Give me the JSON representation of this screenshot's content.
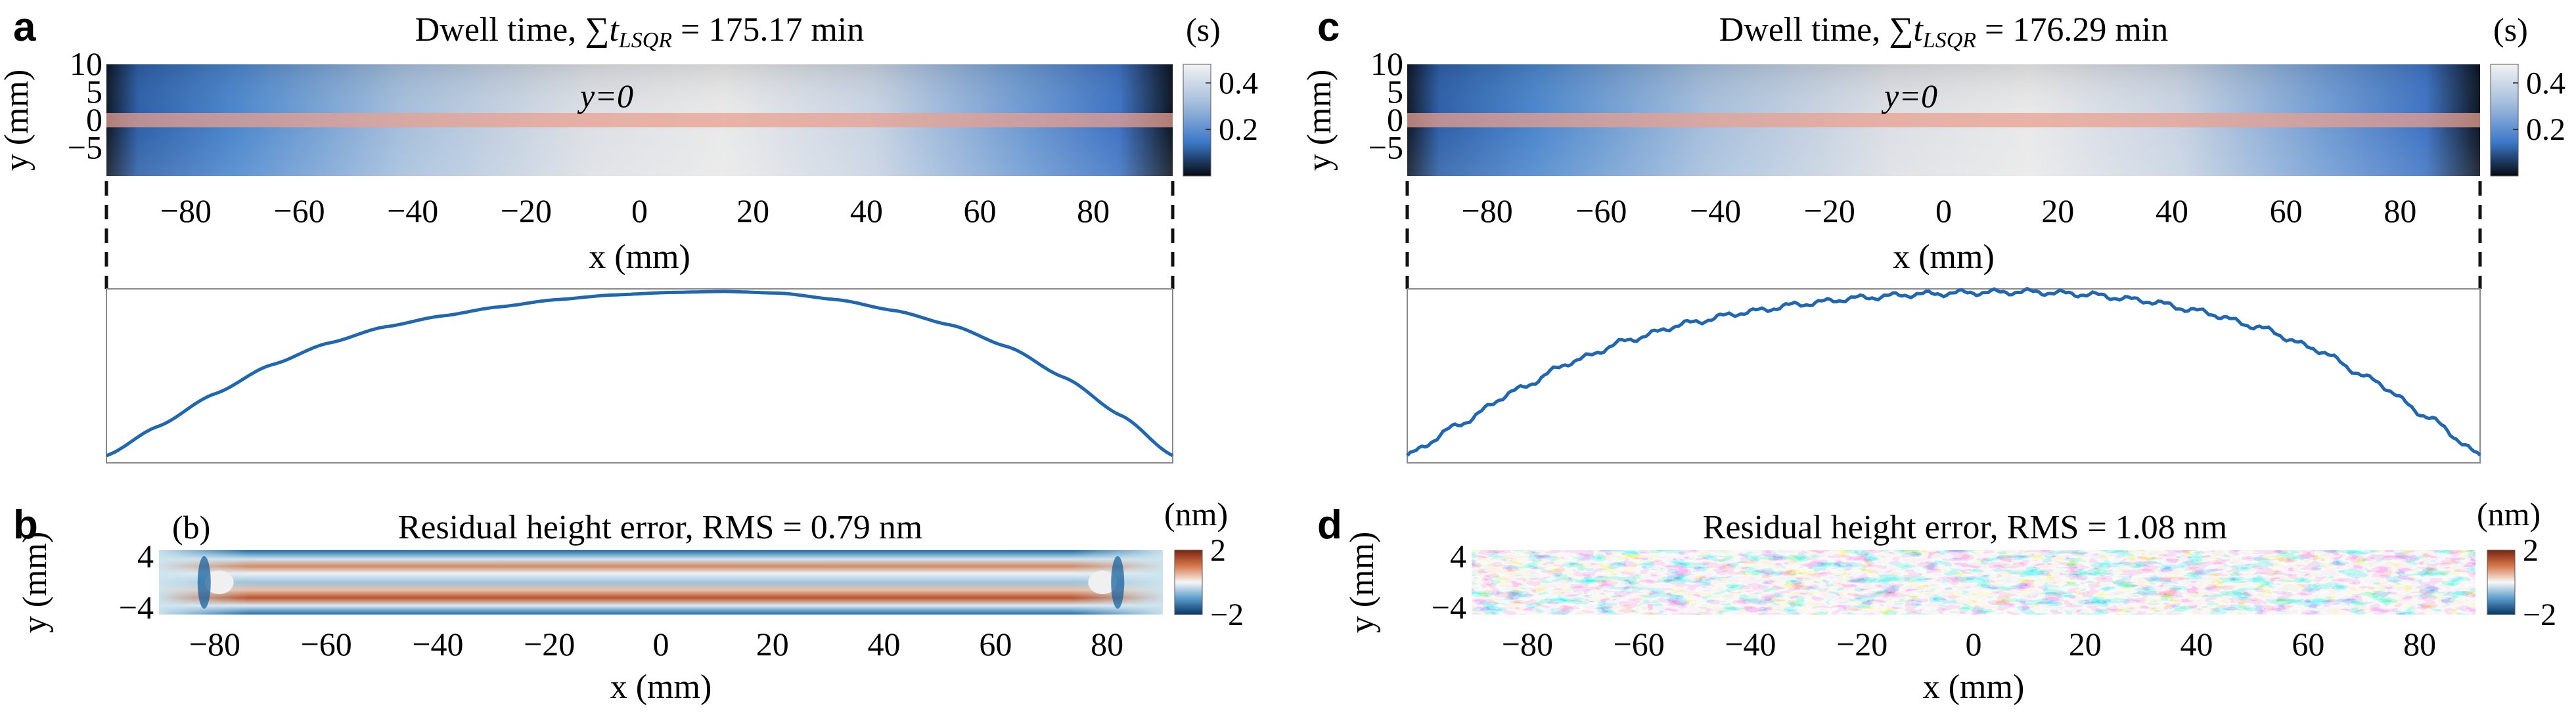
{
  "panels": {
    "a": {
      "label": "a"
    },
    "b": {
      "label": "b",
      "inset": "(b)"
    },
    "c": {
      "label": "c"
    },
    "d": {
      "label": "d"
    }
  },
  "dwell_time": {
    "unit": "(s)",
    "line_label": "y=0",
    "colorbar_ticks": [
      "0.4",
      "0.2"
    ],
    "left_total": "175.17 min",
    "right_total": "176.29 min"
  },
  "residual": {
    "unit": "(nm)",
    "colorbar_ticks": [
      "2",
      "−2"
    ],
    "left_title": "Residual height error, RMS = 0.79 nm",
    "right_title": "Residual height error, RMS = 1.08 nm"
  },
  "colors": {
    "dwell_dark": "#0b1320",
    "dwell_blue": "#3c78c8",
    "dwell_light": "#e6e6e6",
    "res_blue": "#0a5a99",
    "res_white": "#f5f5f5",
    "res_red": "#b2401a",
    "profile_line": "#1f67b0",
    "highlight_band": "#e8a090"
  },
  "chart_data": [
    {
      "panel": "a",
      "type": "heatmap",
      "title_prefix": "Dwell time,",
      "title_sub": "LSQR",
      "title_value": "= 175.17 min",
      "xlabel": "x (mm)",
      "ylabel": "y (mm)",
      "x_ticks": [
        "−80",
        "−60",
        "−40",
        "−20",
        "0",
        "20",
        "40",
        "60",
        "80"
      ],
      "y_ticks": [
        "10",
        "5",
        "0",
        "−5"
      ],
      "xlim": [
        -94,
        94
      ],
      "ylim": [
        -10,
        10
      ],
      "colorbar_range": [
        0,
        0.48
      ],
      "profile_at": "y=0",
      "x": [
        -94,
        -85,
        -75,
        -65,
        -55,
        -45,
        -35,
        -25,
        -15,
        -5,
        5,
        15,
        25,
        35,
        45,
        55,
        65,
        75,
        85,
        94
      ],
      "values": [
        0.02,
        0.1,
        0.19,
        0.27,
        0.33,
        0.375,
        0.405,
        0.43,
        0.45,
        0.463,
        0.47,
        0.473,
        0.468,
        0.45,
        0.42,
        0.38,
        0.32,
        0.235,
        0.13,
        0.02
      ]
    },
    {
      "panel": "c",
      "type": "heatmap",
      "title_prefix": "Dwell time,",
      "title_sub": "LSQR",
      "title_value": "= 176.29 min",
      "xlabel": "x (mm)",
      "ylabel": "y (mm)",
      "x_ticks": [
        "−80",
        "−60",
        "−40",
        "−20",
        "0",
        "20",
        "40",
        "60",
        "80"
      ],
      "y_ticks": [
        "10",
        "5",
        "0",
        "−5"
      ],
      "xlim": [
        -94,
        94
      ],
      "ylim": [
        -10,
        10
      ],
      "colorbar_range": [
        0,
        0.48
      ],
      "profile_at": "y=0",
      "x": [
        -94,
        -85,
        -75,
        -65,
        -55,
        -45,
        -35,
        -25,
        -15,
        -5,
        5,
        15,
        25,
        35,
        45,
        55,
        65,
        75,
        85,
        94
      ],
      "values": [
        0.02,
        0.105,
        0.2,
        0.28,
        0.34,
        0.385,
        0.415,
        0.438,
        0.455,
        0.465,
        0.47,
        0.472,
        0.465,
        0.448,
        0.418,
        0.375,
        0.315,
        0.23,
        0.125,
        0.02
      ]
    },
    {
      "panel": "b",
      "type": "heatmap",
      "title": "Residual height error, RMS = 0.79 nm",
      "xlabel": "x (mm)",
      "ylabel": "y (mm)",
      "x_ticks": [
        "−80",
        "−60",
        "−40",
        "−20",
        "0",
        "20",
        "40",
        "60",
        "80"
      ],
      "y_ticks": [
        "4",
        "−4"
      ],
      "xlim": [
        -90,
        90
      ],
      "ylim": [
        -5,
        5
      ],
      "colorbar_range": [
        -2,
        2
      ]
    },
    {
      "panel": "d",
      "type": "heatmap",
      "title": "Residual height error, RMS = 1.08 nm",
      "xlabel": "x (mm)",
      "ylabel": "y (mm)",
      "x_ticks": [
        "−80",
        "−60",
        "−40",
        "−20",
        "0",
        "20",
        "40",
        "60",
        "80"
      ],
      "y_ticks": [
        "4",
        "−4"
      ],
      "xlim": [
        -90,
        90
      ],
      "ylim": [
        -5,
        5
      ],
      "colorbar_range": [
        -2,
        2
      ]
    }
  ]
}
